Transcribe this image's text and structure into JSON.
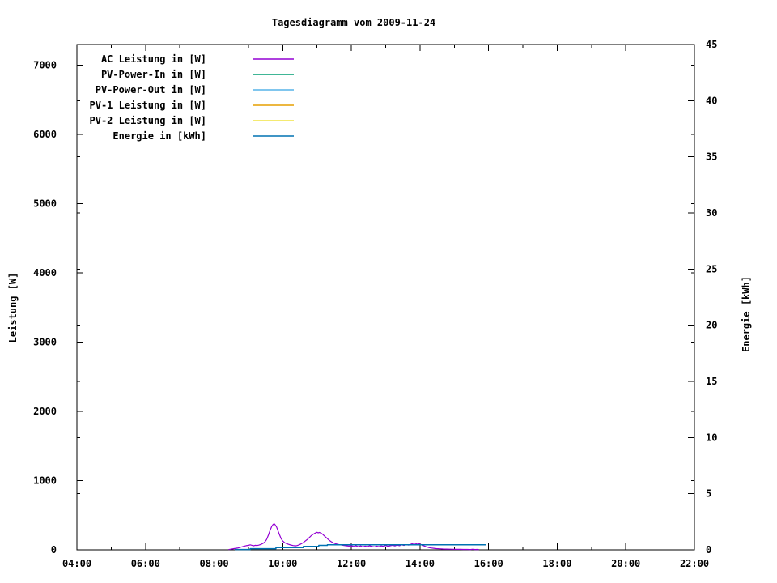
{
  "chart_data": {
    "type": "line",
    "title": "Tagesdiagramm vom 2009-11-24",
    "grid": false,
    "legend_position": "top-left-inside",
    "x_axis": {
      "range_hours": [
        4,
        22
      ],
      "major_tick_hours": [
        4,
        6,
        8,
        10,
        12,
        14,
        16,
        18,
        20,
        22
      ],
      "major_tick_labels": [
        "04:00",
        "06:00",
        "08:00",
        "10:00",
        "12:00",
        "14:00",
        "16:00",
        "18:00",
        "20:00",
        "22:00"
      ],
      "minor_tick_hours": [
        5,
        7,
        9,
        11,
        13,
        15,
        17,
        19,
        21
      ]
    },
    "y_axis": {
      "label": "Leistung [W]",
      "range": [
        0,
        7300
      ],
      "tick_values": [
        0,
        1000,
        2000,
        3000,
        4000,
        5000,
        6000,
        7000
      ],
      "tick_labels": [
        "0",
        "1000",
        "2000",
        "3000",
        "4000",
        "5000",
        "6000",
        "7000"
      ]
    },
    "y2_axis": {
      "label": "Energie [kWh]",
      "range": [
        0,
        45
      ],
      "tick_values": [
        0,
        5,
        10,
        15,
        20,
        25,
        30,
        35,
        40,
        45
      ],
      "tick_labels": [
        "0",
        "5",
        "10",
        "15",
        "20",
        "25",
        "30",
        "35",
        "40",
        "45"
      ]
    },
    "legend": [
      {
        "label": "AC Leistung in [W]",
        "color": "#9400D3"
      },
      {
        "label": "PV-Power-In in [W]",
        "color": "#009E73"
      },
      {
        "label": "PV-Power-Out in [W]",
        "color": "#56B4E9"
      },
      {
        "label": "PV-1 Leistung in [W]",
        "color": "#E69F00"
      },
      {
        "label": "PV-2 Leistung in [W]",
        "color": "#F0E442"
      },
      {
        "label": "Energie in [kWh]",
        "color": "#0072B2"
      }
    ],
    "series": [
      {
        "name": "AC Leistung in [W]",
        "color": "#9400D3",
        "axis": "y",
        "style": "line",
        "points": [
          [
            8.42,
            3
          ],
          [
            8.5,
            10
          ],
          [
            8.58,
            18
          ],
          [
            8.67,
            25
          ],
          [
            8.73,
            32
          ],
          [
            8.8,
            42
          ],
          [
            8.87,
            52
          ],
          [
            8.93,
            60
          ],
          [
            9.0,
            64
          ],
          [
            9.05,
            72
          ],
          [
            9.1,
            66
          ],
          [
            9.15,
            58
          ],
          [
            9.2,
            66
          ],
          [
            9.25,
            62
          ],
          [
            9.3,
            68
          ],
          [
            9.37,
            80
          ],
          [
            9.43,
            95
          ],
          [
            9.48,
            115
          ],
          [
            9.53,
            150
          ],
          [
            9.58,
            210
          ],
          [
            9.63,
            280
          ],
          [
            9.68,
            340
          ],
          [
            9.72,
            368
          ],
          [
            9.75,
            378
          ],
          [
            9.78,
            362
          ],
          [
            9.82,
            330
          ],
          [
            9.85,
            290
          ],
          [
            9.9,
            225
          ],
          [
            9.95,
            165
          ],
          [
            10.0,
            128
          ],
          [
            10.05,
            105
          ],
          [
            10.1,
            92
          ],
          [
            10.17,
            80
          ],
          [
            10.23,
            70
          ],
          [
            10.3,
            62
          ],
          [
            10.37,
            57
          ],
          [
            10.42,
            62
          ],
          [
            10.48,
            72
          ],
          [
            10.53,
            85
          ],
          [
            10.6,
            105
          ],
          [
            10.65,
            125
          ],
          [
            10.72,
            152
          ],
          [
            10.78,
            180
          ],
          [
            10.83,
            205
          ],
          [
            10.88,
            222
          ],
          [
            10.93,
            238
          ],
          [
            10.97,
            248
          ],
          [
            11.0,
            254
          ],
          [
            11.03,
            246
          ],
          [
            11.07,
            252
          ],
          [
            11.12,
            240
          ],
          [
            11.17,
            222
          ],
          [
            11.22,
            198
          ],
          [
            11.28,
            172
          ],
          [
            11.33,
            148
          ],
          [
            11.4,
            122
          ],
          [
            11.47,
            102
          ],
          [
            11.53,
            90
          ],
          [
            11.6,
            80
          ],
          [
            11.68,
            72
          ],
          [
            11.77,
            64
          ],
          [
            11.85,
            58
          ],
          [
            11.93,
            54
          ],
          [
            12.0,
            58
          ],
          [
            12.07,
            48
          ],
          [
            12.13,
            60
          ],
          [
            12.2,
            44
          ],
          [
            12.27,
            56
          ],
          [
            12.33,
            42
          ],
          [
            12.4,
            54
          ],
          [
            12.47,
            46
          ],
          [
            12.53,
            58
          ],
          [
            12.6,
            48
          ],
          [
            12.67,
            42
          ],
          [
            12.73,
            54
          ],
          [
            12.8,
            46
          ],
          [
            12.87,
            56
          ],
          [
            12.93,
            50
          ],
          [
            13.0,
            62
          ],
          [
            13.07,
            50
          ],
          [
            13.13,
            58
          ],
          [
            13.2,
            66
          ],
          [
            13.27,
            56
          ],
          [
            13.33,
            68
          ],
          [
            13.4,
            60
          ],
          [
            13.47,
            72
          ],
          [
            13.53,
            64
          ],
          [
            13.6,
            74
          ],
          [
            13.67,
            68
          ],
          [
            13.73,
            80
          ],
          [
            13.78,
            90
          ],
          [
            13.83,
            96
          ],
          [
            13.88,
            90
          ],
          [
            13.92,
            82
          ],
          [
            13.97,
            86
          ],
          [
            14.02,
            78
          ],
          [
            14.07,
            68
          ],
          [
            14.12,
            56
          ],
          [
            14.18,
            44
          ],
          [
            14.25,
            34
          ],
          [
            14.32,
            27
          ],
          [
            14.4,
            22
          ],
          [
            14.48,
            18
          ],
          [
            14.57,
            15
          ],
          [
            14.67,
            12
          ],
          [
            14.77,
            10
          ],
          [
            14.87,
            9
          ],
          [
            14.97,
            8
          ],
          [
            15.07,
            7
          ],
          [
            15.17,
            7
          ],
          [
            15.27,
            6
          ],
          [
            15.37,
            6
          ],
          [
            15.47,
            5
          ],
          [
            15.55,
            9
          ],
          [
            15.6,
            5
          ],
          [
            15.67,
            6
          ],
          [
            15.72,
            4
          ]
        ]
      },
      {
        "name": "Energie in [kWh]",
        "color": "#0072B2",
        "axis": "y2",
        "style": "steps",
        "points": [
          [
            8.6,
            0.03
          ],
          [
            9.05,
            0.1
          ],
          [
            9.8,
            0.2
          ],
          [
            10.6,
            0.3
          ],
          [
            11.05,
            0.4
          ],
          [
            11.3,
            0.45
          ],
          [
            15.92,
            0.45
          ]
        ]
      }
    ]
  }
}
